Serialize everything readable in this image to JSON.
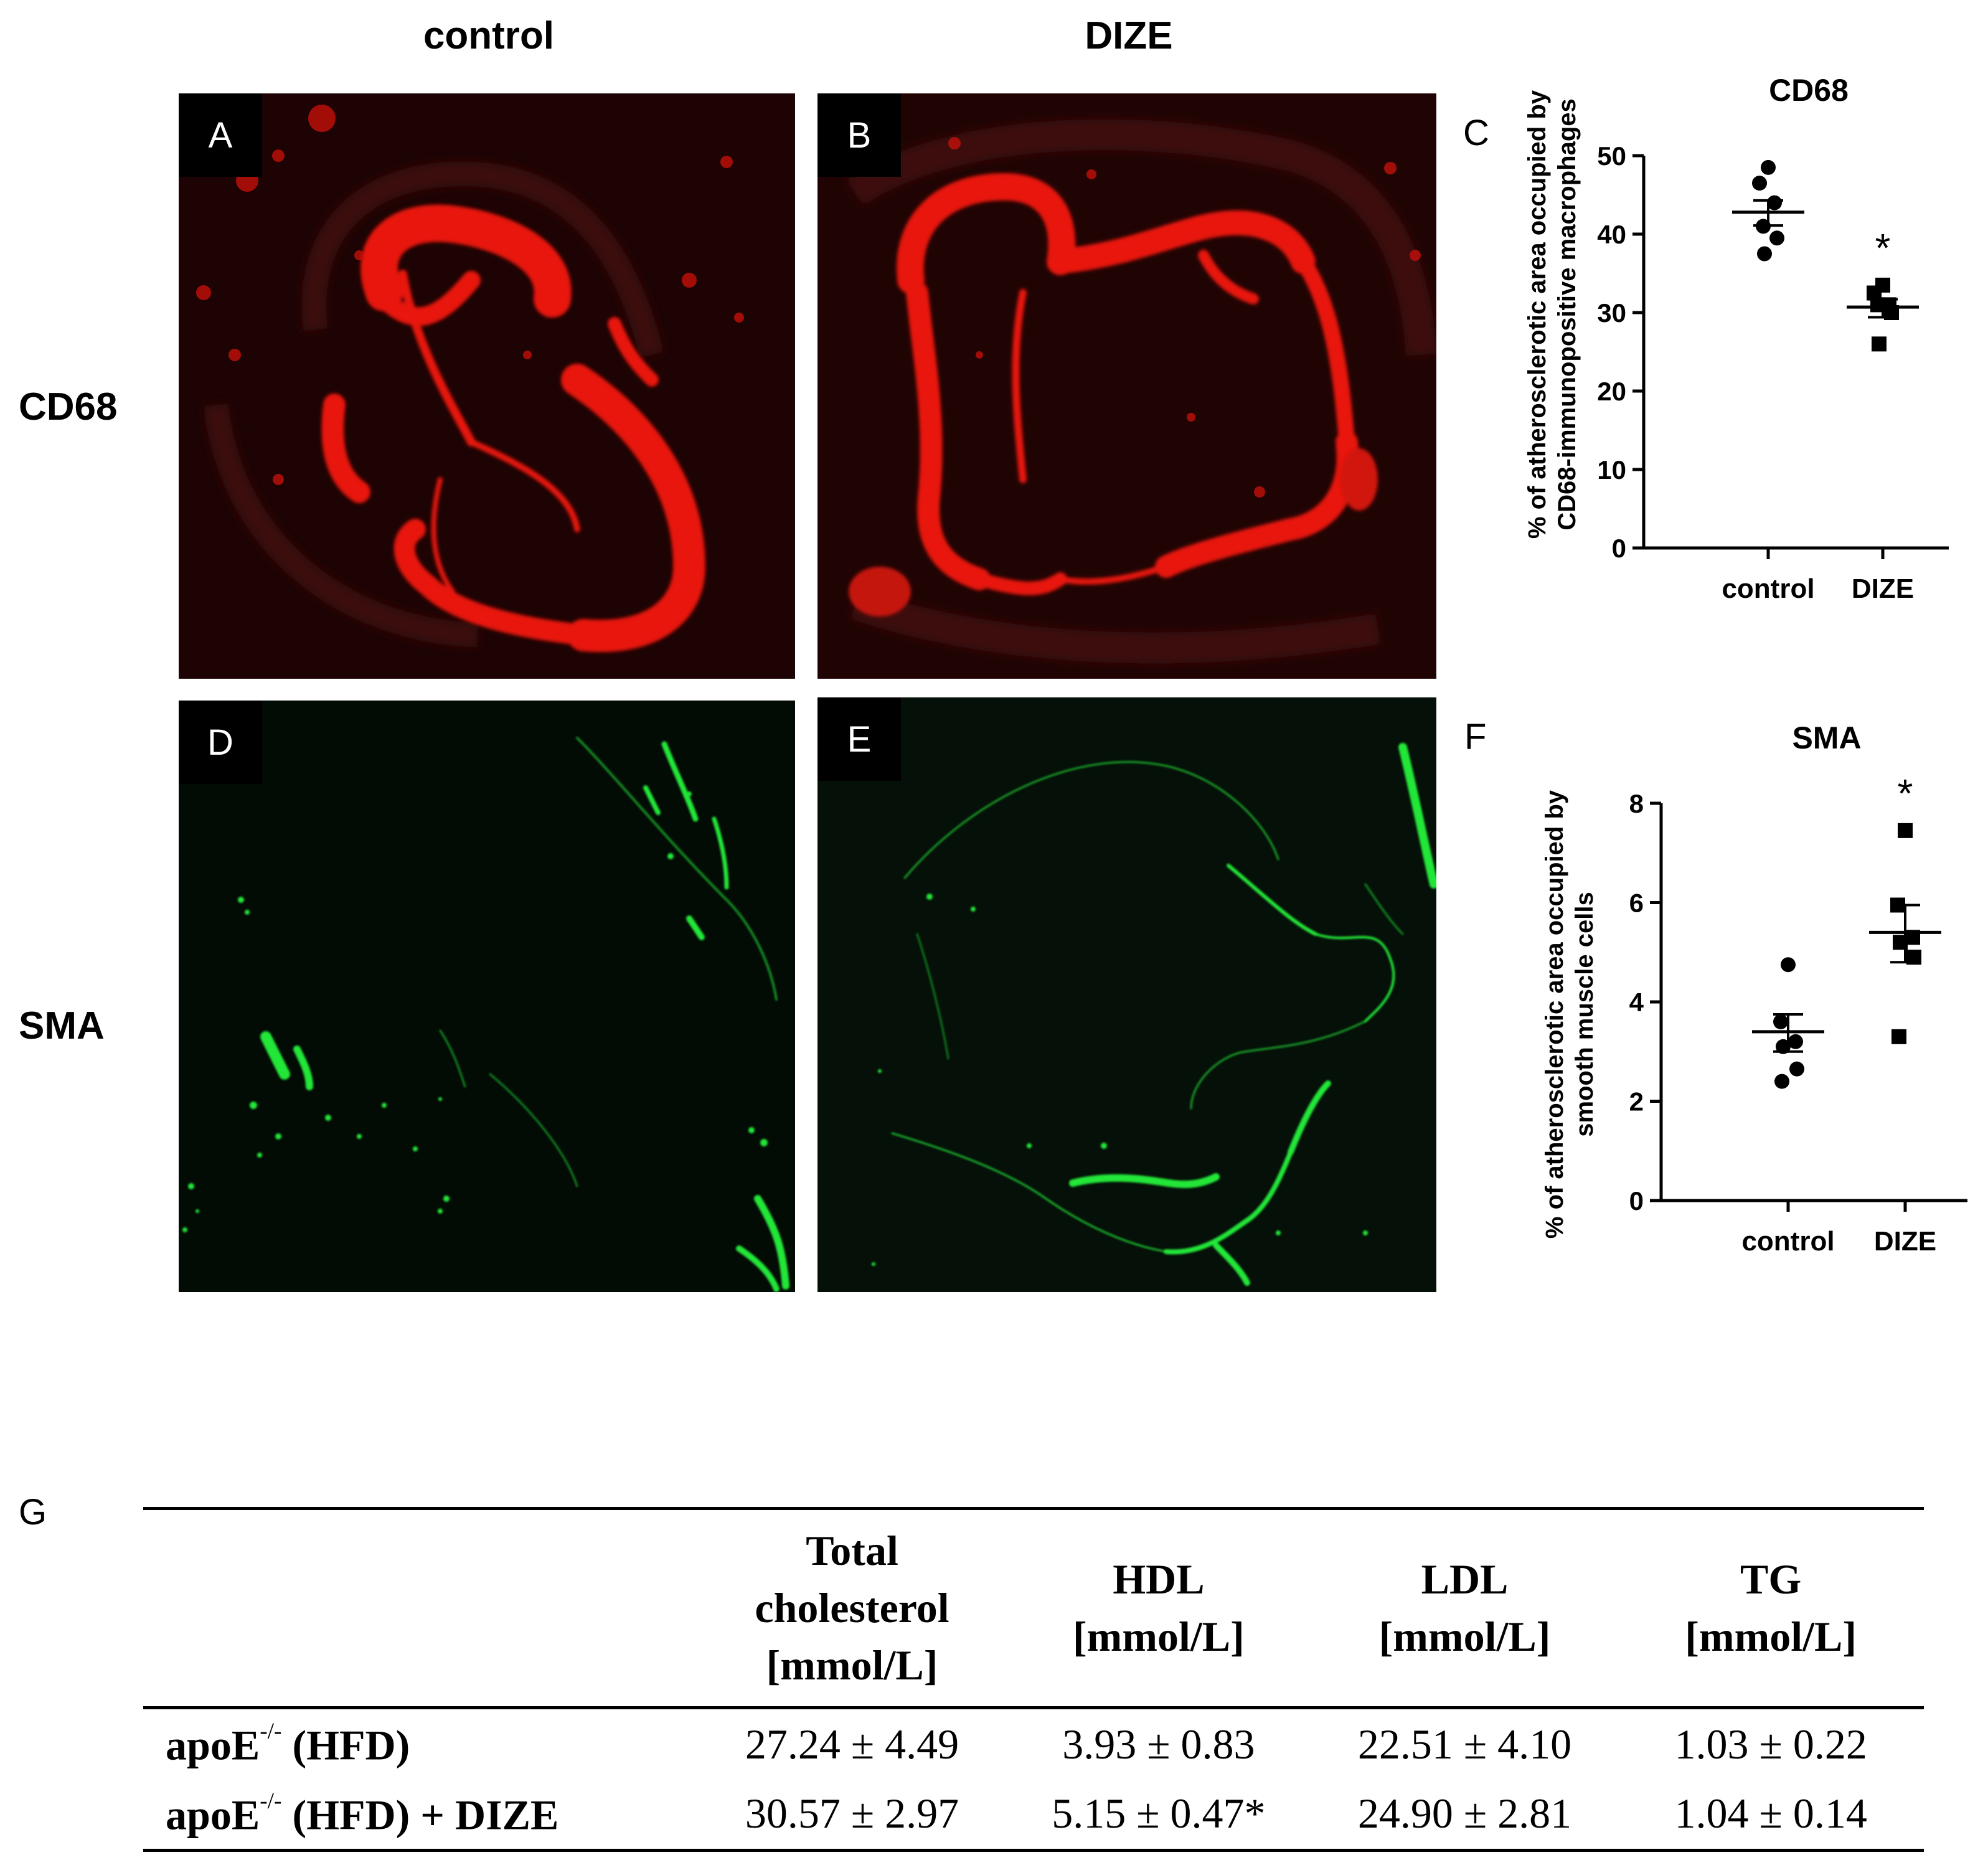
{
  "column_headers": [
    "control",
    "DIZE"
  ],
  "row_headers": [
    "CD68",
    "SMA"
  ],
  "panels": [
    {
      "letter": "A",
      "stain": "red"
    },
    {
      "letter": "B",
      "stain": "red"
    },
    {
      "letter": "D",
      "stain": "green"
    },
    {
      "letter": "E",
      "stain": "green"
    }
  ],
  "panel_letters": {
    "C": "C",
    "F": "F",
    "G": "G"
  },
  "colors": {
    "cd68_stain": "#e8140a",
    "sma_stain": "#22e638",
    "table_rule": "#000000"
  },
  "chart_data": [
    {
      "type": "scatter",
      "title": "CD68",
      "ylabel_line1": "% of atherosclerotic area occupied by",
      "ylabel_line2": "CD68-immunopositive macrophages",
      "categories": [
        "control",
        "DIZE"
      ],
      "ylim": [
        0,
        50
      ],
      "yticks": [
        0,
        10,
        20,
        30,
        40,
        50
      ],
      "series": [
        {
          "name": "control",
          "marker": "circle",
          "points": [
            48.5,
            46.5,
            44.0,
            41.0,
            39.5,
            37.5
          ],
          "mean": 42.8,
          "sem_upper": 44.3,
          "sem_lower": 41.1
        },
        {
          "name": "DIZE",
          "marker": "square",
          "points": [
            33.5,
            32.5,
            31.0,
            31.0,
            30.0,
            26.0
          ],
          "mean": 30.7,
          "sem_upper": 31.7,
          "sem_lower": 29.4
        }
      ],
      "significance": [
        {
          "category": "DIZE",
          "label": "*"
        }
      ]
    },
    {
      "type": "scatter",
      "title": "SMA",
      "ylabel_line1": "% of atherosclerotic area occupied by",
      "ylabel_line2": "smooth muscle cells",
      "categories": [
        "control",
        "DIZE"
      ],
      "ylim": [
        0,
        8
      ],
      "yticks": [
        0,
        2,
        4,
        6,
        8
      ],
      "series": [
        {
          "name": "control",
          "marker": "circle",
          "points": [
            4.75,
            3.6,
            3.2,
            3.1,
            2.65,
            2.4
          ],
          "mean": 3.4,
          "sem_upper": 3.75,
          "sem_lower": 3.0
        },
        {
          "name": "DIZE",
          "marker": "square",
          "points": [
            7.45,
            5.95,
            5.3,
            5.2,
            4.9,
            3.3
          ],
          "mean": 5.4,
          "sem_upper": 5.95,
          "sem_lower": 4.8
        }
      ],
      "significance": [
        {
          "category": "DIZE",
          "label": "*"
        }
      ]
    }
  ],
  "table": {
    "headers": [
      "",
      [
        "Total",
        "cholesterol",
        "[mmol/L]"
      ],
      [
        "HDL",
        "[mmol/L]"
      ],
      [
        "LDL",
        "[mmol/L]"
      ],
      [
        "TG",
        "[mmol/L]"
      ]
    ],
    "rows": [
      {
        "label_pre": "apoE",
        "label_sup": "-/-",
        "label_post": " (HFD)",
        "values": [
          "27.24 ± 4.49",
          "3.93 ± 0.83",
          "22.51 ± 4.10",
          "1.03 ± 0.22"
        ]
      },
      {
        "label_pre": "apoE",
        "label_sup": "-/-",
        "label_post": " (HFD) + DIZE",
        "values": [
          "30.57 ± 2.97",
          "5.15 ± 0.47*",
          "24.90 ± 2.81",
          "1.04 ± 0.14"
        ]
      }
    ]
  }
}
